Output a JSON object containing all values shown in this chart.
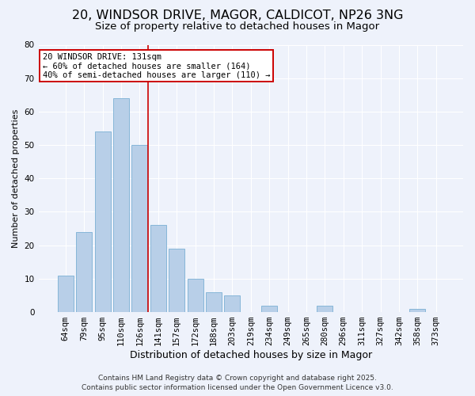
{
  "title": "20, WINDSOR DRIVE, MAGOR, CALDICOT, NP26 3NG",
  "subtitle": "Size of property relative to detached houses in Magor",
  "xlabel": "Distribution of detached houses by size in Magor",
  "ylabel": "Number of detached properties",
  "categories": [
    "64sqm",
    "79sqm",
    "95sqm",
    "110sqm",
    "126sqm",
    "141sqm",
    "157sqm",
    "172sqm",
    "188sqm",
    "203sqm",
    "219sqm",
    "234sqm",
    "249sqm",
    "265sqm",
    "280sqm",
    "296sqm",
    "311sqm",
    "327sqm",
    "342sqm",
    "358sqm",
    "373sqm"
  ],
  "values": [
    11,
    24,
    54,
    64,
    50,
    26,
    19,
    10,
    6,
    5,
    0,
    2,
    0,
    0,
    2,
    0,
    0,
    0,
    0,
    1,
    0
  ],
  "bar_color": "#b8cfe8",
  "bar_edge_color": "#7aafd4",
  "vline_color": "#cc0000",
  "vline_pos": 4.45,
  "annotation_title": "20 WINDSOR DRIVE: 131sqm",
  "annotation_line1": "← 60% of detached houses are smaller (164)",
  "annotation_line2": "40% of semi-detached houses are larger (110) →",
  "annotation_box_facecolor": "#ffffff",
  "annotation_box_edgecolor": "#cc0000",
  "ylim": [
    0,
    80
  ],
  "yticks": [
    0,
    10,
    20,
    30,
    40,
    50,
    60,
    70,
    80
  ],
  "background_color": "#eef2fb",
  "grid_color": "#ffffff",
  "footer1": "Contains HM Land Registry data © Crown copyright and database right 2025.",
  "footer2": "Contains public sector information licensed under the Open Government Licence v3.0.",
  "title_fontsize": 11.5,
  "subtitle_fontsize": 9.5,
  "xlabel_fontsize": 9,
  "ylabel_fontsize": 8,
  "tick_fontsize": 7.5,
  "annotation_fontsize": 7.5,
  "footer_fontsize": 6.5
}
